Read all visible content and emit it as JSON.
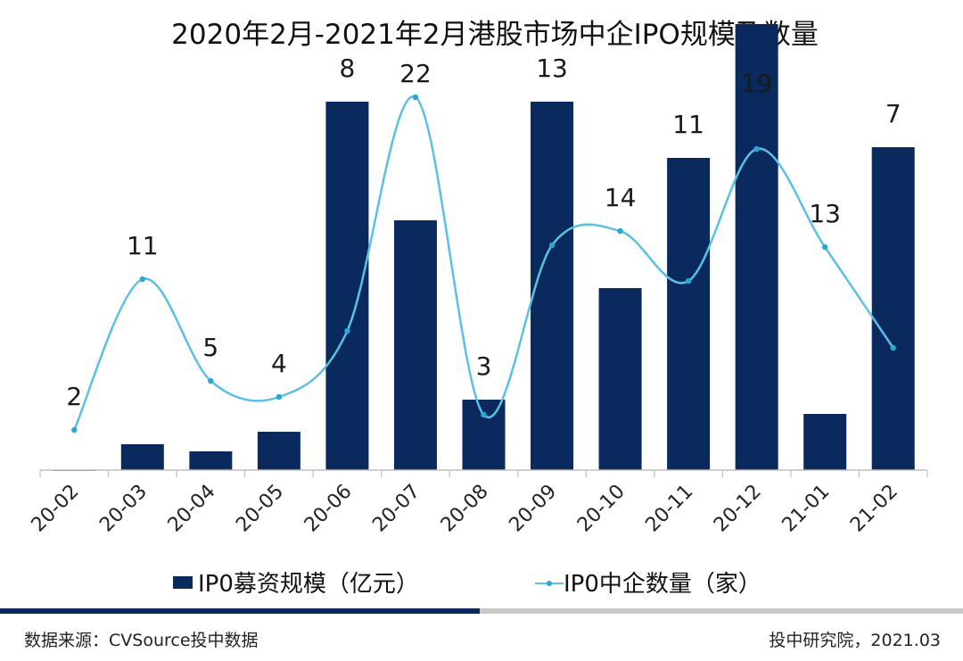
{
  "chart_data": {
    "type": "bar",
    "title": "2020年2月-2021年2月港股市场中企IPO规模及数量",
    "categories": [
      "20-02",
      "20-03",
      "20-04",
      "20-05",
      "20-06",
      "20-07",
      "20-08",
      "20-09",
      "20-10",
      "20-11",
      "20-12",
      "21-01",
      "21-02"
    ],
    "series": [
      {
        "name": "IP0募资规模（亿元）",
        "type": "bar",
        "color": "#0a2a5e",
        "values": [
          2,
          42,
          28,
          58,
          535,
          349,
          100,
          535,
          251,
          434,
          635,
          81,
          460
        ],
        "bar_heights_relative_to_axis": [
          0.3,
          29,
          21,
          43,
          413,
          280,
          79,
          413,
          204,
          350,
          500,
          63,
          362
        ]
      },
      {
        "name": "IP0中企数量（家）",
        "type": "line",
        "color": "#5bc0e6",
        "values": [
          2,
          11,
          5,
          4,
          8,
          22,
          3,
          13,
          14,
          11,
          19,
          13,
          7
        ],
        "line_points_relative_to_axis": [
          45,
          214,
          100,
          82,
          156,
          418,
          62,
          252,
          268,
          212,
          360,
          250,
          137
        ]
      }
    ],
    "legend_position": "bottom",
    "grid": false
  },
  "footer": {
    "source": "数据来源：CVSource投中数据",
    "credit": "投中研究院，2021.03"
  },
  "colors": {
    "bar": "#0a2a5e",
    "line": "#5bc0e6",
    "divider_dark": "#0a2a5e",
    "divider_light": "#c8c8c8"
  }
}
